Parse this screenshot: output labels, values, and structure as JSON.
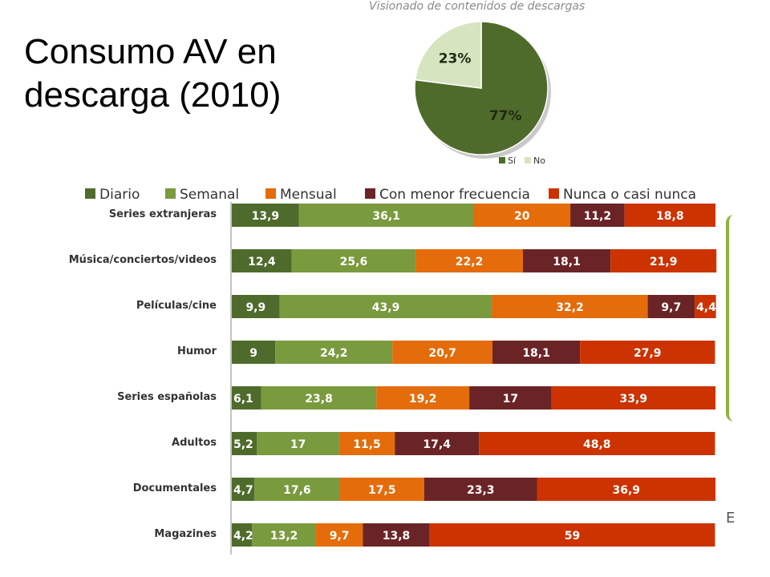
{
  "slide": {
    "title_line1": "Consumo AV en",
    "title_line2": "descarga (2010)"
  },
  "chart_data": [
    {
      "type": "pie",
      "title": "Visionado de contenidos de descargas",
      "labels": [
        "Sí",
        "No"
      ],
      "values": [
        77,
        23
      ],
      "value_labels": [
        "77%",
        "23%"
      ],
      "colors": [
        "#4f6b2c",
        "#d6e4c0"
      ],
      "legend_position": "bottom-right"
    },
    {
      "type": "bar",
      "orientation": "horizontal",
      "stacked": true,
      "categories": [
        "Series extranjeras",
        "Música/conciertos/videos",
        "Películas/cine",
        "Humor",
        "Series españolas",
        "Adultos",
        "Documentales",
        "Magazines"
      ],
      "series": [
        {
          "name": "Diario",
          "color": "#4f6b2c",
          "values": [
            13.9,
            12.4,
            9.9,
            9,
            6.1,
            5.2,
            4.7,
            4.2
          ],
          "labels": [
            "13,9",
            "12,4",
            "9,9",
            "9",
            "6,1",
            "5,2",
            "4,7",
            "4,2"
          ]
        },
        {
          "name": "Semanal",
          "color": "#7a9a3e",
          "values": [
            36.1,
            25.6,
            43.9,
            24.2,
            23.8,
            17,
            17.6,
            13.2
          ],
          "labels": [
            "36,1",
            "25,6",
            "43,9",
            "24,2",
            "23,8",
            "17",
            "17,6",
            "13,2"
          ]
        },
        {
          "name": "Mensual",
          "color": "#e46c0a",
          "values": [
            20,
            22.2,
            32.2,
            20.7,
            19.2,
            11.5,
            17.5,
            9.7
          ],
          "labels": [
            "20",
            "22,2",
            "32,2",
            "20,7",
            "19,2",
            "11,5",
            "17,5",
            "9,7"
          ]
        },
        {
          "name": "Con menor frecuencia",
          "color": "#6b2426",
          "values": [
            11.2,
            18.1,
            9.7,
            18.1,
            17,
            17.4,
            23.3,
            13.8
          ],
          "labels": [
            "11,2",
            "18,1",
            "9,7",
            "18,1",
            "17",
            "17,4",
            "23,3",
            "13,8"
          ]
        },
        {
          "name": "Nunca o casi nunca",
          "color": "#cc3300",
          "values": [
            18.8,
            21.9,
            4.4,
            27.9,
            33.9,
            48.8,
            36.9,
            59
          ],
          "labels": [
            "18,8",
            "21,9",
            "4,4",
            "27,9",
            "33,9",
            "48,8",
            "36,9",
            "59"
          ]
        }
      ],
      "xlim": [
        0,
        100
      ],
      "legend_position": "top",
      "grid": false
    }
  ],
  "decor": {
    "side_letter": "E"
  }
}
